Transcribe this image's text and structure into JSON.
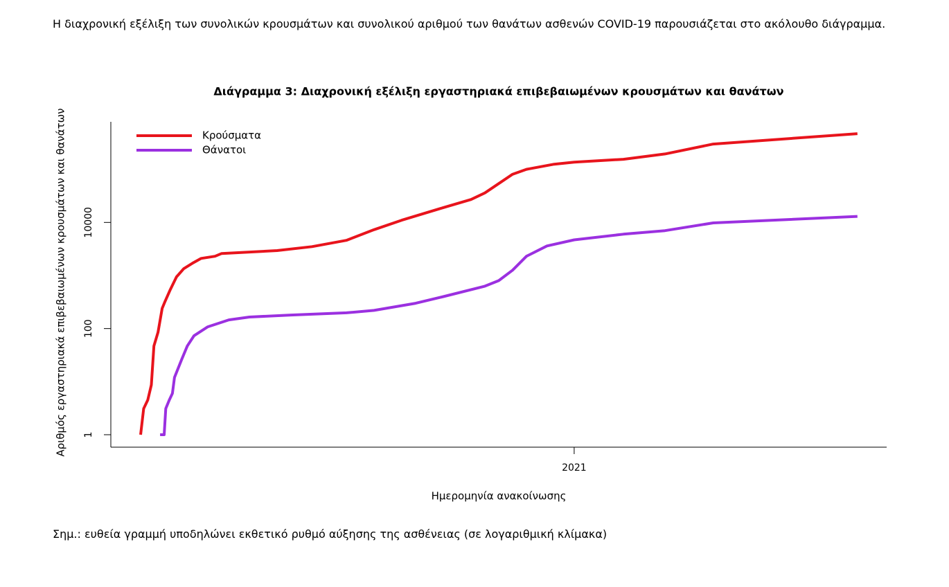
{
  "intro": "Η διαχρονική εξέλιξη των συνολικών κρουσμάτων και συνολικού αριθμού των θανάτων ασθενών COVID-19 παρουσιάζεται στο ακόλουθο διάγραμμα.",
  "chart_data": {
    "type": "line",
    "title": "Διάγραμμα 3: Διαχρονική εξέλιξη εργαστηριακά επιβεβαιωμένων κρουσμάτων και θανάτων",
    "x_label": "Ημερομηνία ανακοίνωσης",
    "y_label": "Αριθμός εργαστηριακά επιβεβαιωμένων κρουσμάτων και θανάτων",
    "xlim": [
      2020.097,
      2021.609
    ],
    "xticks": [
      2021
    ],
    "ylim": [
      0.6,
      740000
    ],
    "yticks": [
      1,
      100,
      10000
    ],
    "y_log": true,
    "legend": "top-left",
    "series": [
      {
        "name": "Κρούσματα",
        "color": "#e8141c",
        "x": [
          2020.155,
          2020.161,
          2020.169,
          2020.176,
          2020.181,
          2020.189,
          2020.197,
          2020.203,
          2020.212,
          2020.225,
          2020.239,
          2020.256,
          2020.273,
          2020.3,
          2020.313,
          2020.421,
          2020.489,
          2020.556,
          2020.61,
          2020.664,
          2020.745,
          2020.799,
          2020.826,
          2020.853,
          2020.88,
          2020.907,
          2020.961,
          2021.0,
          2021.096,
          2021.177,
          2021.271,
          2021.552
        ],
        "values": [
          1,
          3.1,
          4.5,
          8.7,
          47,
          85,
          240,
          330,
          520,
          940,
          1340,
          1700,
          2100,
          2300,
          2600,
          2950,
          3500,
          4600,
          7300,
          11000,
          19000,
          27000,
          36000,
          54000,
          81000,
          100000,
          125000,
          137000,
          155000,
          195000,
          300000,
          470000
        ]
      },
      {
        "name": "Θάνατοι",
        "color": "#9b30e0",
        "x": [
          2020.193,
          2020.201,
          2020.204,
          2020.211,
          2020.217,
          2020.221,
          2020.235,
          2020.246,
          2020.259,
          2020.286,
          2020.327,
          2020.367,
          2020.448,
          2020.556,
          2020.61,
          2020.691,
          2020.745,
          2020.826,
          2020.853,
          2020.88,
          2020.907,
          2020.947,
          2021.0,
          2021.096,
          2021.177,
          2021.271,
          2021.552
        ],
        "values": [
          1,
          1,
          3.1,
          4.5,
          6,
          12,
          26,
          47,
          73,
          108,
          146,
          165,
          180,
          198,
          220,
          300,
          400,
          630,
          800,
          1260,
          2300,
          3600,
          4700,
          6000,
          7000,
          9800,
          13000
        ]
      }
    ]
  },
  "note": "Σημ.: ευθεία γραμμή υποδηλώνει εκθετικό ρυθμό αύξησης της ασθένειας (σε λογαριθμική κλίμακα)"
}
